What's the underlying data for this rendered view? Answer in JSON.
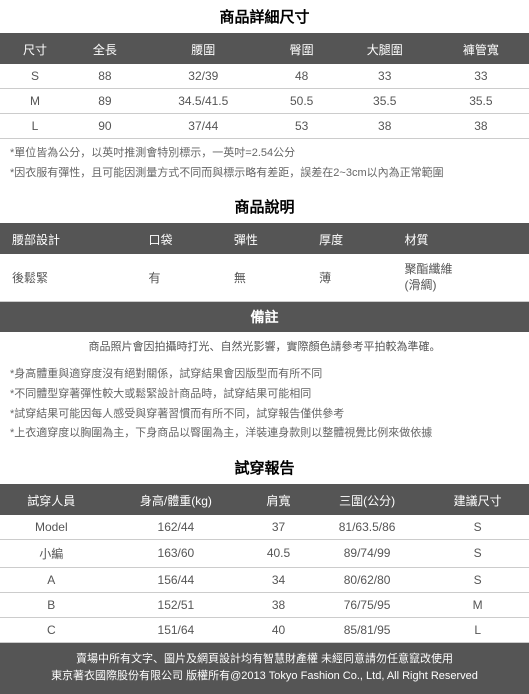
{
  "sizeSection": {
    "title": "商品詳細尺寸",
    "headers": [
      "尺寸",
      "全長",
      "腰圍",
      "臀圍",
      "大腿圍",
      "褲管寬"
    ],
    "rows": [
      [
        "S",
        "88",
        "32/39",
        "48",
        "33",
        "33"
      ],
      [
        "M",
        "89",
        "34.5/41.5",
        "50.5",
        "35.5",
        "35.5"
      ],
      [
        "L",
        "90",
        "37/44",
        "53",
        "38",
        "38"
      ]
    ],
    "notes": [
      "*單位皆為公分，以英吋推測會特別標示，一英吋=2.54公分",
      "*因衣服有彈性，且可能因測量方式不同而與標示略有差距，誤差在2~3cm以內為正常範圍"
    ]
  },
  "descSection": {
    "title": "商品說明",
    "headers": [
      "腰部設計",
      "口袋",
      "彈性",
      "厚度",
      "材質"
    ],
    "row": [
      "後鬆緊",
      "有",
      "無",
      "薄",
      "聚酯纖維\n(滑綢)"
    ]
  },
  "remarkSection": {
    "title": "備註",
    "line": "商品照片會因拍攝時打光、自然光影響，實際顏色請參考平拍較為準確。",
    "notes": [
      "*身高體重與適穿度沒有絕對關係，試穿結果會因版型而有所不同",
      "*不同體型穿著彈性較大或鬆緊設計商品時，試穿結果可能相同",
      "*試穿結果可能因每人感受與穿著習慣而有所不同，試穿報告僅供參考",
      "*上衣適穿度以胸圍為主，下身商品以臀圍為主，洋裝連身款則以整體視覺比例來做依據"
    ]
  },
  "trySection": {
    "title": "試穿報告",
    "headers": [
      "試穿人員",
      "身高/體重(kg)",
      "肩寬",
      "三圍(公分)",
      "建議尺寸"
    ],
    "rows": [
      [
        "Model",
        "162/44",
        "37",
        "81/63.5/86",
        "S"
      ],
      [
        "小編",
        "163/60",
        "40.5",
        "89/74/99",
        "S"
      ],
      [
        "A",
        "156/44",
        "34",
        "80/62/80",
        "S"
      ],
      [
        "B",
        "152/51",
        "38",
        "76/75/95",
        "M"
      ],
      [
        "C",
        "151/64",
        "40",
        "85/81/95",
        "L"
      ]
    ]
  },
  "footer": {
    "line1": "賣場中所有文字、圖片及網頁設計均有智慧財產權 未經同意請勿任意竄改使用",
    "line2": "東京著衣國際股份有限公司 版權所有@2013 Tokyo Fashion Co., Ltd, All Right Reserved"
  }
}
